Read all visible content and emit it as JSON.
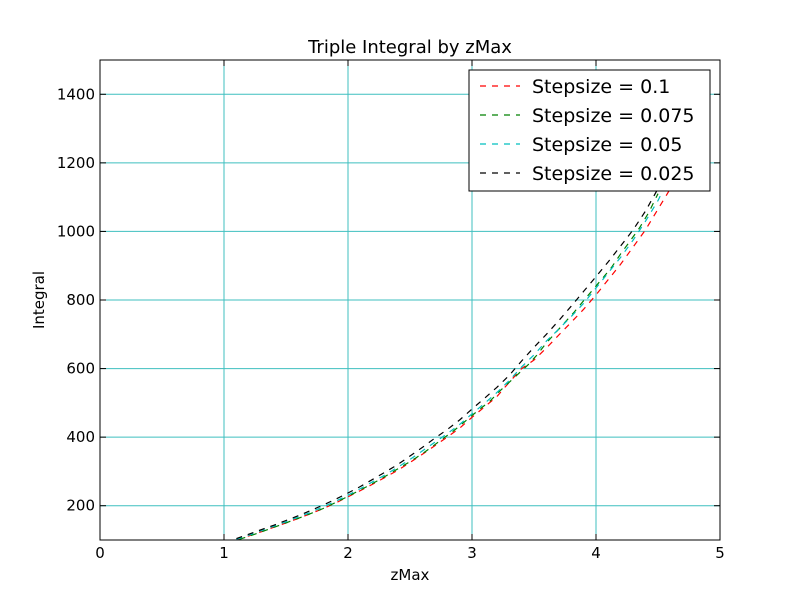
{
  "chart_data": {
    "type": "line",
    "title": "Triple Integral by zMax",
    "xlabel": "zMax",
    "ylabel": "Integral",
    "xlim": [
      0,
      5
    ],
    "ylim": [
      100,
      1500
    ],
    "xticks": [
      "0",
      "1",
      "2",
      "3",
      "4",
      "5"
    ],
    "yticks": [
      "200",
      "400",
      "600",
      "800",
      "1000",
      "1200",
      "1400"
    ],
    "grid": true,
    "grid_color": "#3fbfbf",
    "legend_position": "upper right",
    "line_style": "dashed",
    "series": [
      {
        "name": "Stepsize = 0.1",
        "color": "#ff0000",
        "x": [
          1.1,
          1.2,
          1.3,
          1.4,
          1.5,
          1.6,
          1.7,
          1.8,
          1.9,
          2.0,
          2.1,
          2.2,
          2.3,
          2.4,
          2.5,
          2.6,
          2.7,
          2.8,
          2.9,
          3.0,
          3.1,
          3.2,
          3.3,
          3.4,
          3.5,
          3.6,
          3.7,
          3.8,
          3.9,
          4.0,
          4.1,
          4.2,
          4.3,
          4.4,
          4.5,
          4.6
        ],
        "y": [
          100,
          112,
          124,
          137,
          150,
          163,
          177,
          192,
          208,
          226,
          244,
          263,
          283,
          303,
          326,
          350,
          375,
          400,
          426,
          458,
          488,
          518,
          560,
          600,
          625,
          660,
          698,
          735,
          773,
          815,
          860,
          905,
          955,
          1005,
          1065,
          1125
        ]
      },
      {
        "name": "Stepsize = 0.075",
        "color": "#008000",
        "x": [
          1.125,
          1.2,
          1.275,
          1.35,
          1.425,
          1.5,
          1.575,
          1.65,
          1.725,
          1.8,
          1.875,
          1.95,
          2.025,
          2.1,
          2.175,
          2.25,
          2.325,
          2.4,
          2.475,
          2.55,
          2.625,
          2.7,
          2.775,
          2.85,
          2.925,
          3.0,
          3.075,
          3.15,
          3.225,
          3.3,
          3.375,
          3.45,
          3.525,
          3.6,
          3.675,
          3.75,
          3.825,
          3.9,
          3.975,
          4.05,
          4.125,
          4.2,
          4.275,
          4.35,
          4.425,
          4.5
        ],
        "y": [
          102,
          111,
          120,
          130,
          140,
          150,
          160,
          170,
          181,
          192,
          205,
          218,
          232,
          246,
          260,
          275,
          291,
          307,
          323,
          340,
          358,
          378,
          398,
          418,
          440,
          463,
          485,
          507,
          535,
          560,
          585,
          610,
          640,
          675,
          705,
          735,
          765,
          798,
          830,
          862,
          895,
          935,
          972,
          1010,
          1055,
          1110
        ]
      },
      {
        "name": "Stepsize = 0.05",
        "color": "#00bfbf",
        "x": [
          1.1,
          1.2,
          1.3,
          1.4,
          1.5,
          1.6,
          1.7,
          1.8,
          1.9,
          2.0,
          2.1,
          2.2,
          2.3,
          2.4,
          2.5,
          2.6,
          2.7,
          2.8,
          2.9,
          3.0,
          3.1,
          3.2,
          3.3,
          3.4,
          3.5,
          3.6,
          3.7,
          3.8,
          3.9,
          4.0,
          4.1,
          4.2,
          4.3,
          4.4,
          4.5,
          4.6
        ],
        "y": [
          102,
          114,
          127,
          140,
          153,
          167,
          181,
          197,
          213,
          231,
          250,
          270,
          290,
          312,
          335,
          360,
          385,
          410,
          437,
          468,
          498,
          530,
          565,
          605,
          640,
          680,
          715,
          752,
          790,
          835,
          880,
          925,
          975,
          1030,
          1090,
          1165
        ]
      },
      {
        "name": "Stepsize = 0.025",
        "color": "#000000",
        "x": [
          1.1,
          1.2,
          1.3,
          1.4,
          1.5,
          1.6,
          1.7,
          1.8,
          1.9,
          2.0,
          2.1,
          2.2,
          2.3,
          2.4,
          2.5,
          2.6,
          2.7,
          2.8,
          2.9,
          3.0,
          3.1,
          3.2,
          3.3,
          3.4,
          3.5,
          3.6,
          3.7,
          3.8,
          3.9,
          4.0,
          4.1,
          4.2,
          4.3,
          4.4,
          4.5,
          4.6
        ],
        "y": [
          104,
          117,
          130,
          143,
          157,
          171,
          186,
          202,
          219,
          237,
          256,
          277,
          298,
          320,
          345,
          370,
          397,
          422,
          450,
          482,
          513,
          545,
          580,
          622,
          662,
          700,
          740,
          782,
          825,
          868,
          912,
          958,
          1005,
          1060,
          1125,
          1200
        ]
      }
    ]
  }
}
